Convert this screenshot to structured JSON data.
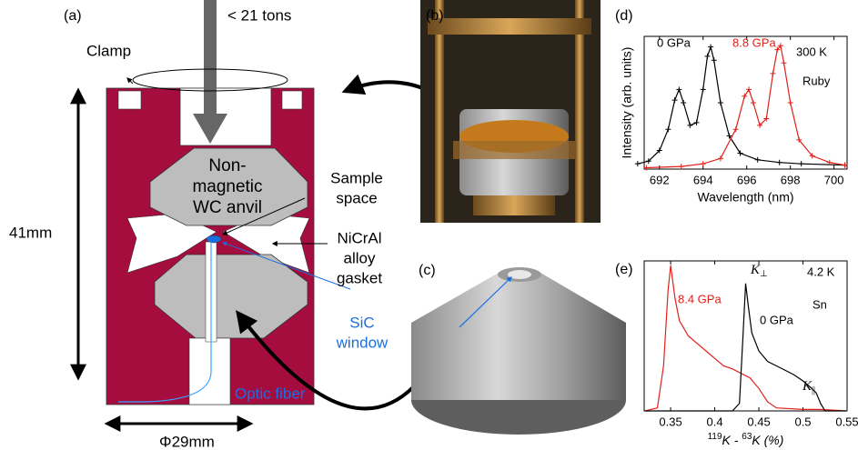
{
  "diagram": {
    "panels": {
      "a": "(a)",
      "b": "(b)",
      "c": "(c)"
    },
    "labels": {
      "load": "< 21 tons",
      "clamp": "Clamp",
      "height": "41mm",
      "diameter": "Φ29mm",
      "anvil": [
        "Non-",
        "magnetic",
        "WC anvil"
      ],
      "sample": [
        "Sample",
        "space"
      ],
      "gasket": [
        "NiCrAl",
        "alloy",
        "gasket"
      ],
      "window": [
        "SiC",
        "window"
      ],
      "fiber": "Optic fiber"
    }
  },
  "chart_data": [
    {
      "type": "line",
      "panel": "(d)",
      "xlabel": "Wavelength (nm)",
      "ylabel": "Intensity (arb. units)",
      "xlim": [
        691.3,
        700.6
      ],
      "ylim": [
        0,
        1
      ],
      "xticks": [
        692,
        694,
        696,
        698,
        700
      ],
      "markers": true,
      "annotations": [
        "300 K",
        "Ruby"
      ],
      "series": [
        {
          "name": "0 GPa",
          "color": "#000000",
          "x": [
            691,
            691.5,
            692,
            692.4,
            692.7,
            692.9,
            693.1,
            693.4,
            693.7,
            694.0,
            694.2,
            694.35,
            694.5,
            694.8,
            695.2,
            695.7,
            696.5,
            697.5,
            698.5,
            700.5
          ],
          "values": [
            0.04,
            0.06,
            0.14,
            0.3,
            0.52,
            0.6,
            0.5,
            0.33,
            0.35,
            0.6,
            0.85,
            0.92,
            0.82,
            0.5,
            0.25,
            0.12,
            0.07,
            0.05,
            0.04,
            0.03
          ]
        },
        {
          "name": "8.8 GPa",
          "color": "#e0201b",
          "x": [
            691.4,
            693,
            694,
            694.8,
            695.5,
            695.9,
            696.1,
            696.3,
            696.6,
            696.9,
            697.2,
            697.4,
            697.55,
            697.7,
            698.0,
            698.4,
            699,
            699.8,
            700.5
          ],
          "values": [
            0.01,
            0.02,
            0.04,
            0.08,
            0.3,
            0.55,
            0.6,
            0.5,
            0.33,
            0.38,
            0.72,
            0.9,
            0.93,
            0.8,
            0.5,
            0.22,
            0.1,
            0.05,
            0.03
          ]
        }
      ]
    },
    {
      "type": "line",
      "panel": "(e)",
      "xlabel_parts": [
        "119",
        "K - ",
        "63",
        "K (%)"
      ],
      "xlim": [
        0.32,
        0.55
      ],
      "ylim": [
        0,
        1
      ],
      "xticks": [
        0.35,
        0.4,
        0.45,
        0.5,
        0.55
      ],
      "markers": false,
      "annotations": [
        "4.2 K",
        "Sn"
      ],
      "peak_labels": [
        {
          "symbol": "K",
          "sub": "⊥"
        },
        {
          "symbol": "K",
          "sub": "||"
        }
      ],
      "series": [
        {
          "name": "8.4 GPa",
          "color": "#e0201b",
          "x": [
            0.321,
            0.335,
            0.342,
            0.347,
            0.35,
            0.355,
            0.36,
            0.37,
            0.38,
            0.39,
            0.4,
            0.41,
            0.42,
            0.43,
            0.44,
            0.45,
            0.46,
            0.47,
            0.5,
            0.52,
            0.549
          ],
          "values": [
            0.0,
            0.02,
            0.3,
            0.8,
            0.97,
            0.75,
            0.6,
            0.5,
            0.45,
            0.4,
            0.35,
            0.3,
            0.28,
            0.25,
            0.22,
            0.15,
            0.06,
            0.02,
            0.01,
            0.01,
            0.0
          ]
        },
        {
          "name": "0 GPa",
          "color": "#000000",
          "x": [
            0.321,
            0.42,
            0.428,
            0.432,
            0.435,
            0.438,
            0.442,
            0.45,
            0.46,
            0.47,
            0.48,
            0.49,
            0.5,
            0.51,
            0.515,
            0.52,
            0.525,
            0.549
          ],
          "values": [
            0,
            0,
            0.05,
            0.5,
            0.85,
            0.7,
            0.52,
            0.4,
            0.33,
            0.3,
            0.27,
            0.24,
            0.2,
            0.15,
            0.12,
            0.05,
            0.0,
            0
          ]
        }
      ]
    }
  ]
}
